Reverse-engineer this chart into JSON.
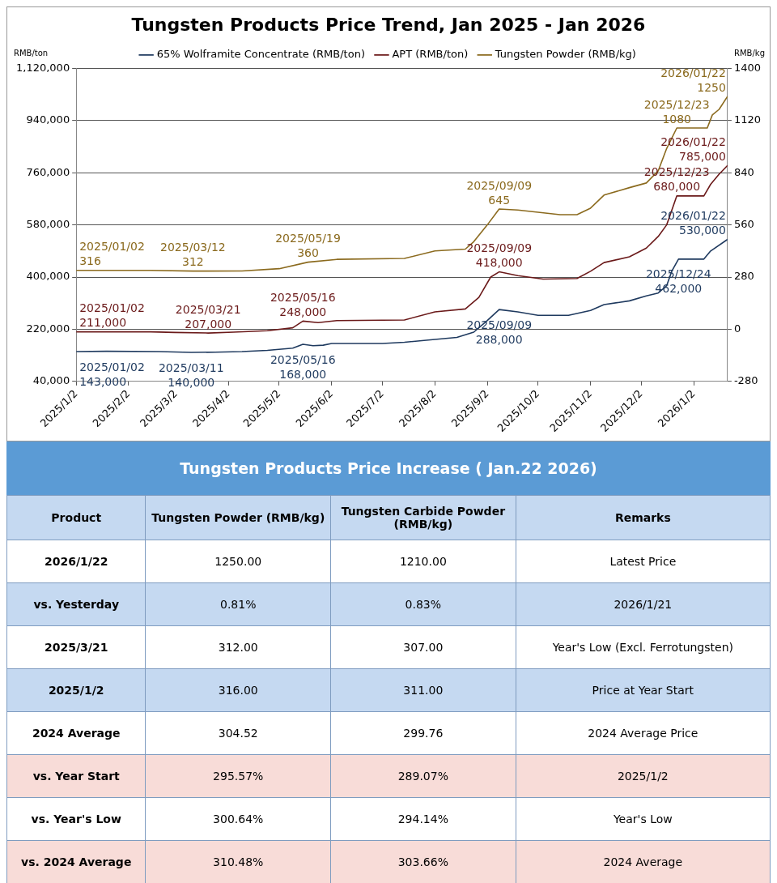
{
  "chart_data": [
    {
      "type": "line",
      "title": "Tungsten Products Price Trend, Jan 2025 - Jan 2026",
      "ylabel": "RMB/ton",
      "y2label": "RMB/kg",
      "legend": "top",
      "grid": "y",
      "marker": "none",
      "line_style": "solid",
      "xlim": [
        "2025-01-02",
        "2026-01-22"
      ],
      "xticks": [
        {
          "value": "2025-01-02",
          "label": "2025/1/2"
        },
        {
          "value": "2025-02-02",
          "label": "2025/2/2"
        },
        {
          "value": "2025-03-02",
          "label": "2025/3/2"
        },
        {
          "value": "2025-04-02",
          "label": "2025/4/2"
        },
        {
          "value": "2025-05-02",
          "label": "2025/5/2"
        },
        {
          "value": "2025-06-02",
          "label": "2025/6/2"
        },
        {
          "value": "2025-07-02",
          "label": "2025/7/2"
        },
        {
          "value": "2025-08-02",
          "label": "2025/8/2"
        },
        {
          "value": "2025-09-02",
          "label": "2025/9/2"
        },
        {
          "value": "2025-10-02",
          "label": "2025/10/2"
        },
        {
          "value": "2025-11-02",
          "label": "2025/11/2"
        },
        {
          "value": "2025-12-02",
          "label": "2025/12/2"
        },
        {
          "value": "2026-01-02",
          "label": "2026/1/2"
        }
      ],
      "ylim": [
        40000,
        1120000
      ],
      "yticks": [
        {
          "value": 40000,
          "label": "40,000"
        },
        {
          "value": 220000,
          "label": "220,000"
        },
        {
          "value": 400000,
          "label": "400,000"
        },
        {
          "value": 580000,
          "label": "580,000"
        },
        {
          "value": 760000,
          "label": "760,000"
        },
        {
          "value": 940000,
          "label": "940,000"
        },
        {
          "value": 1120000,
          "label": "1,120,000"
        }
      ],
      "y2lim": [
        -280,
        1400
      ],
      "y2ticks": [
        -280,
        0,
        280,
        560,
        840,
        1120,
        1400
      ],
      "series": [
        {
          "name": "65% Wolframite Concentrate (RMB/ton)",
          "color": "#1f3a5f",
          "x": [
            "2025-01-02",
            "2025-01-20",
            "2025-02-20",
            "2025-03-11",
            "2025-03-25",
            "2025-04-10",
            "2025-04-25",
            "2025-05-10",
            "2025-05-16",
            "2025-05-22",
            "2025-05-28",
            "2025-06-02",
            "2025-07-02",
            "2025-07-15",
            "2025-08-02",
            "2025-08-15",
            "2025-08-25",
            "2025-09-02",
            "2025-09-09",
            "2025-09-20",
            "2025-10-02",
            "2025-10-20",
            "2025-11-02",
            "2025-11-10",
            "2025-11-25",
            "2025-12-05",
            "2025-12-12",
            "2025-12-17",
            "2025-12-20",
            "2025-12-24",
            "2025-12-28",
            "2026-01-08",
            "2026-01-12",
            "2026-01-22"
          ],
          "values": [
            143000,
            144000,
            143000,
            140000,
            141000,
            143000,
            147000,
            155000,
            168000,
            163000,
            165000,
            171000,
            171000,
            175000,
            185000,
            192000,
            210000,
            250000,
            288000,
            280000,
            268000,
            268000,
            285000,
            305000,
            318000,
            335000,
            345000,
            370000,
            420000,
            462000,
            462000,
            462000,
            490000,
            530000
          ],
          "value_labels": [
            "2025/01/02 143,000",
            null,
            null,
            "2025/03/11 140,000",
            null,
            null,
            null,
            null,
            "2025/05/16 168,000",
            null,
            null,
            null,
            null,
            null,
            null,
            null,
            null,
            null,
            "2025/09/09 288,000",
            null,
            null,
            null,
            null,
            null,
            null,
            null,
            null,
            null,
            null,
            "2025/12/24 462,000",
            null,
            null,
            null,
            "2026/01/22 530,000"
          ]
        },
        {
          "name": "APT (RMB/ton)",
          "color": "#6b1a1a",
          "x": [
            "2025-01-02",
            "2025-02-15",
            "2025-03-01",
            "2025-03-21",
            "2025-04-05",
            "2025-04-25",
            "2025-05-10",
            "2025-05-16",
            "2025-05-25",
            "2025-06-05",
            "2025-07-15",
            "2025-08-02",
            "2025-08-20",
            "2025-08-28",
            "2025-09-04",
            "2025-09-09",
            "2025-09-20",
            "2025-10-05",
            "2025-10-25",
            "2025-11-02",
            "2025-11-10",
            "2025-11-25",
            "2025-12-05",
            "2025-12-12",
            "2025-12-17",
            "2025-12-23",
            "2026-01-08",
            "2026-01-12",
            "2026-01-17",
            "2026-01-22"
          ],
          "values": [
            211000,
            211000,
            209000,
            207000,
            210000,
            215000,
            225000,
            248000,
            243000,
            250000,
            252000,
            280000,
            290000,
            330000,
            400000,
            418000,
            405000,
            393000,
            395000,
            420000,
            450000,
            470000,
            500000,
            540000,
            580000,
            680000,
            680000,
            720000,
            755000,
            785000
          ],
          "value_labels": [
            "2025/01/02 211,000",
            null,
            null,
            "2025/03/21 207,000",
            null,
            null,
            null,
            "2025/05/16 248,000",
            null,
            null,
            null,
            null,
            null,
            null,
            null,
            "2025/09/09 418,000",
            null,
            null,
            null,
            null,
            null,
            null,
            null,
            null,
            null,
            "2025/12/23 680,000",
            null,
            null,
            null,
            "2026/01/22 785,000"
          ]
        },
        {
          "name": "Tungsten Powder (RMB/kg)",
          "color": "#8b6a1e",
          "axis": "y2",
          "x": [
            "2025-01-02",
            "2025-02-15",
            "2025-03-12",
            "2025-04-10",
            "2025-05-02",
            "2025-05-19",
            "2025-06-05",
            "2025-07-15",
            "2025-08-02",
            "2025-08-20",
            "2025-08-25",
            "2025-09-02",
            "2025-09-09",
            "2025-09-20",
            "2025-10-15",
            "2025-10-25",
            "2025-11-02",
            "2025-11-10",
            "2025-11-25",
            "2025-12-05",
            "2025-12-12",
            "2025-12-17",
            "2025-12-23",
            "2026-01-10",
            "2026-01-13",
            "2026-01-17",
            "2026-01-22"
          ],
          "values": [
            316,
            316,
            312,
            313,
            325,
            360,
            375,
            380,
            420,
            430,
            470,
            560,
            645,
            640,
            615,
            615,
            650,
            720,
            760,
            785,
            850,
            970,
            1080,
            1080,
            1150,
            1180,
            1250
          ],
          "value_labels": [
            "2025/01/02 316",
            null,
            "2025/03/12 312",
            null,
            null,
            "2025/05/19 360",
            null,
            null,
            null,
            null,
            null,
            null,
            "2025/09/09 645",
            null,
            null,
            null,
            null,
            null,
            null,
            null,
            null,
            null,
            "2025/12/23 1080",
            null,
            null,
            null,
            "2026/01/22 1250"
          ]
        }
      ]
    },
    {
      "type": "other",
      "title": "Tungsten Products Price Increase ( Jan.22 2026)",
      "categories": [
        "Product",
        "Tungsten Powder (RMB/kg)",
        "Tungsten Carbide Powder (RMB/kg)",
        "Remarks"
      ],
      "cell_labels": [
        [
          "2026/1/22",
          "1250.00",
          "1210.00",
          "Latest Price"
        ],
        [
          "vs. Yesterday",
          "0.81%",
          "0.83%",
          "2026/1/21"
        ],
        [
          "2025/3/21",
          "312.00",
          "307.00",
          "Year's Low (Excl. Ferrotungsten)"
        ],
        [
          "2025/1/2",
          "316.00",
          "311.00",
          "Price at Year Start"
        ],
        [
          "2024 Average",
          "304.52",
          "299.76",
          "2024 Average Price"
        ],
        [
          "vs. Year Start",
          "295.57%",
          "289.07%",
          "2025/1/2"
        ],
        [
          "vs. Year's Low",
          "300.64%",
          "294.14%",
          "Year's Low"
        ],
        [
          "vs. 2024 Average",
          "310.48%",
          "303.66%",
          "2024 Average"
        ]
      ],
      "colors": [
        "#c5d9f1",
        "#ffffff",
        "#c5d9f1",
        "#ffffff",
        "#c5d9f1",
        "#ffffff",
        "#f8dcd8",
        "#ffffff",
        "#f8dcd8"
      ]
    }
  ]
}
